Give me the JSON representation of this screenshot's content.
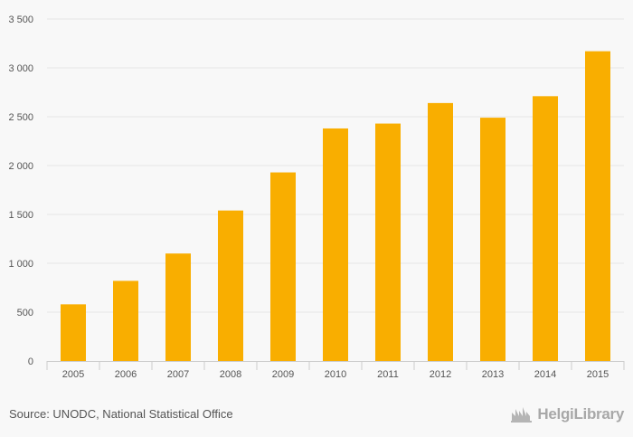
{
  "chart_data": {
    "type": "bar",
    "categories": [
      "2005",
      "2006",
      "2007",
      "2008",
      "2009",
      "2010",
      "2011",
      "2012",
      "2013",
      "2014",
      "2015"
    ],
    "values": [
      580,
      820,
      1100,
      1540,
      1930,
      2380,
      2430,
      2640,
      2490,
      2710,
      3170
    ],
    "ylim": [
      0,
      3500
    ],
    "yticks": [
      0,
      500,
      1000,
      1500,
      2000,
      2500,
      3000,
      3500
    ],
    "ytick_labels": [
      "0",
      "500",
      "1 000",
      "1 500",
      "2 000",
      "2 500",
      "3 000",
      "3 500"
    ],
    "bar_color": "#f9ae00",
    "grid": true,
    "title": "",
    "xlabel": "",
    "ylabel": ""
  },
  "footer": {
    "source": "Source: UNODC, National Statistical Office",
    "logo_text": "HelgiLibrary",
    "logo_icon": "helgi-library-logo-icon"
  }
}
